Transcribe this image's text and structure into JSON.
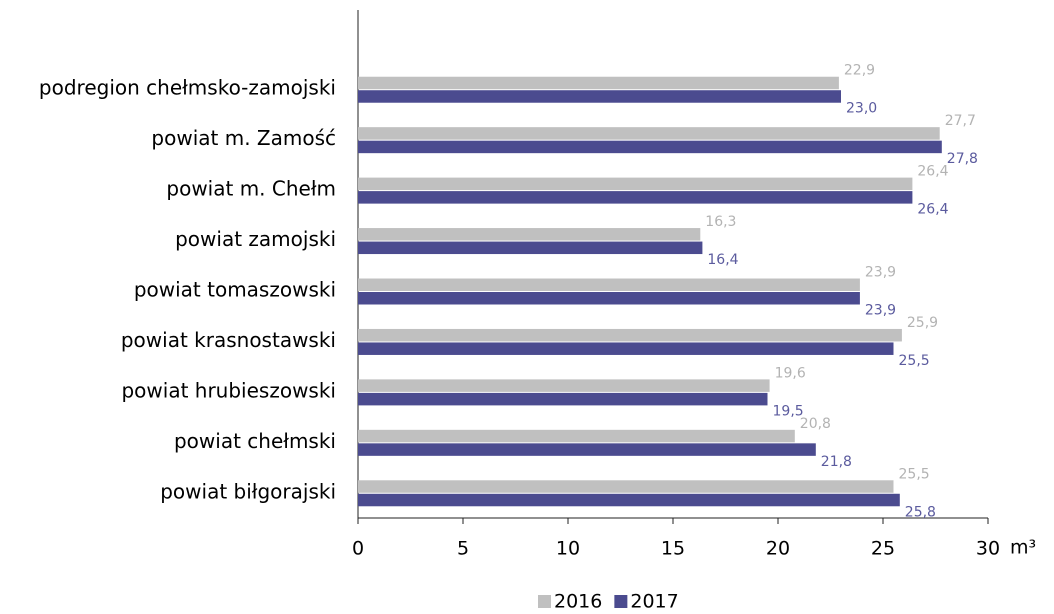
{
  "chart_data": {
    "type": "bar",
    "orientation": "horizontal",
    "categories": [
      "podregion chełmsko-zamojski",
      "powiat m. Zamość",
      "powiat m. Chełm",
      "powiat zamojski",
      "powiat tomaszowski",
      "powiat krasnostawski",
      "powiat hrubieszowski",
      "powiat chełmski",
      "powiat biłgorajski"
    ],
    "series": [
      {
        "name": "2016",
        "color": "#c0c0c0",
        "label_color": "#b3b3b3",
        "values": [
          22.9,
          27.7,
          26.4,
          16.3,
          23.9,
          25.9,
          19.6,
          20.8,
          25.5
        ],
        "value_labels": [
          "22,9",
          "27,7",
          "26,4",
          "16,3",
          "23,9",
          "25,9",
          "19,6",
          "20,8",
          "25,5"
        ]
      },
      {
        "name": "2017",
        "color": "#4b4b8f",
        "label_color": "#5b5b9e",
        "values": [
          23.0,
          27.8,
          26.4,
          16.4,
          23.9,
          25.5,
          19.5,
          21.8,
          25.8
        ],
        "value_labels": [
          "23,0",
          "27,8",
          "26,4",
          "16,4",
          "23,9",
          "25,5",
          "19,5",
          "21,8",
          "25,8"
        ]
      }
    ],
    "xlabel": "m³",
    "xlim": [
      0,
      30
    ],
    "xticks": [
      0,
      5,
      10,
      15,
      20,
      25,
      30
    ],
    "legend": "bottom"
  }
}
